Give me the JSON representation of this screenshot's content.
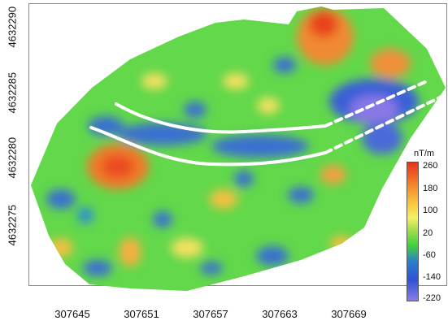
{
  "axes": {
    "y_ticks": [
      "4632290",
      "4632285",
      "4632280",
      "4632275"
    ],
    "x_ticks": [
      "307645",
      "307651",
      "307657",
      "307663",
      "307669"
    ]
  },
  "colorbar": {
    "unit": "nT/m",
    "ticks": [
      "260",
      "180",
      "100",
      "20",
      "-60",
      "-140",
      "-220"
    ],
    "colors": [
      "#e8321c",
      "#f57e2a",
      "#f9c93c",
      "#f6f063",
      "#3fd43a",
      "#2a7ccf",
      "#8a7ce8"
    ]
  },
  "colors": {
    "background": "#ffffff",
    "trace_line": "#ffffff"
  }
}
